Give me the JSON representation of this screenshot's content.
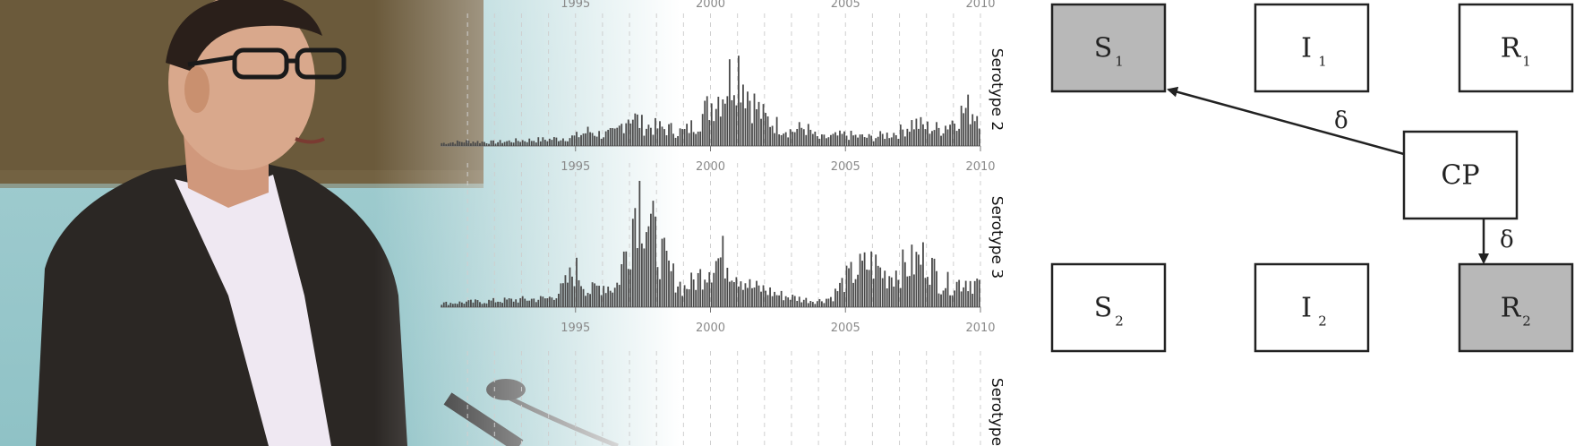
{
  "charts": {
    "tick_labels": [
      "1995",
      "2000",
      "2005",
      "2010"
    ],
    "panels": [
      {
        "label": "Serotype 2"
      },
      {
        "label": "Serotype 3"
      },
      {
        "label": "Serotype"
      }
    ]
  },
  "chart_data": [
    {
      "type": "bar",
      "title": "",
      "series_name": "Serotype 2",
      "xlim": [
        1990,
        2010
      ],
      "x_ticks": [
        1995,
        2000,
        2005,
        2010
      ],
      "profile": [
        [
          1990.0,
          0.03
        ],
        [
          1991.0,
          0.05
        ],
        [
          1992.0,
          0.04
        ],
        [
          1993.0,
          0.06
        ],
        [
          1994.0,
          0.07
        ],
        [
          1995.0,
          0.1
        ],
        [
          1995.5,
          0.16
        ],
        [
          1996.0,
          0.12
        ],
        [
          1996.5,
          0.14
        ],
        [
          1997.0,
          0.35
        ],
        [
          1997.5,
          0.22
        ],
        [
          1998.0,
          0.2
        ],
        [
          1998.5,
          0.18
        ],
        [
          1999.0,
          0.15
        ],
        [
          1999.5,
          0.25
        ],
        [
          2000.0,
          0.45
        ],
        [
          2000.5,
          0.6
        ],
        [
          2001.0,
          0.9
        ],
        [
          2001.5,
          0.5
        ],
        [
          2002.0,
          0.3
        ],
        [
          2002.5,
          0.22
        ],
        [
          2003.0,
          0.16
        ],
        [
          2003.5,
          0.2
        ],
        [
          2004.0,
          0.08
        ],
        [
          2004.5,
          0.1
        ],
        [
          2005.0,
          0.12
        ],
        [
          2005.5,
          0.1
        ],
        [
          2006.0,
          0.09
        ],
        [
          2006.5,
          0.12
        ],
        [
          2007.0,
          0.15
        ],
        [
          2007.5,
          0.25
        ],
        [
          2008.0,
          0.2
        ],
        [
          2008.5,
          0.18
        ],
        [
          2009.0,
          0.28
        ],
        [
          2009.5,
          0.4
        ],
        [
          2010.0,
          0.35
        ]
      ]
    },
    {
      "type": "bar",
      "title": "",
      "series_name": "Serotype 3",
      "xlim": [
        1990,
        2010
      ],
      "x_ticks": [
        1995,
        2000,
        2005,
        2010
      ],
      "profile": [
        [
          1990.0,
          0.03
        ],
        [
          1991.0,
          0.04
        ],
        [
          1992.0,
          0.05
        ],
        [
          1993.0,
          0.06
        ],
        [
          1994.0,
          0.07
        ],
        [
          1994.5,
          0.14
        ],
        [
          1995.0,
          0.3
        ],
        [
          1995.5,
          0.12
        ],
        [
          1996.0,
          0.18
        ],
        [
          1996.5,
          0.15
        ],
        [
          1997.0,
          0.55
        ],
        [
          1997.3,
          0.95
        ],
        [
          1997.7,
          0.7
        ],
        [
          1998.0,
          0.5
        ],
        [
          1998.5,
          0.28
        ],
        [
          1999.0,
          0.15
        ],
        [
          1999.5,
          0.22
        ],
        [
          2000.0,
          0.35
        ],
        [
          2000.5,
          0.4
        ],
        [
          2001.0,
          0.28
        ],
        [
          2001.5,
          0.16
        ],
        [
          2002.0,
          0.14
        ],
        [
          2002.5,
          0.1
        ],
        [
          2003.0,
          0.08
        ],
        [
          2003.5,
          0.06
        ],
        [
          2004.0,
          0.05
        ],
        [
          2004.5,
          0.08
        ],
        [
          2005.0,
          0.22
        ],
        [
          2005.5,
          0.3
        ],
        [
          2006.0,
          0.35
        ],
        [
          2006.5,
          0.25
        ],
        [
          2007.0,
          0.3
        ],
        [
          2007.5,
          0.35
        ],
        [
          2008.0,
          0.4
        ],
        [
          2008.5,
          0.2
        ],
        [
          2009.0,
          0.18
        ],
        [
          2009.5,
          0.22
        ],
        [
          2010.0,
          0.18
        ]
      ]
    },
    {
      "type": "bar",
      "title": "",
      "series_name": "Serotype",
      "xlim": [
        1990,
        2010
      ],
      "x_ticks": [
        1995,
        2000,
        2005,
        2010
      ],
      "profile": []
    }
  ],
  "diagram": {
    "nodes": [
      {
        "id": "S1",
        "main": "S",
        "sub": "1",
        "fill": "#b8b8b8"
      },
      {
        "id": "I1",
        "main": "I",
        "sub": "1",
        "fill": "#ffffff"
      },
      {
        "id": "R1",
        "main": "R",
        "sub": "1",
        "fill": "#ffffff"
      },
      {
        "id": "CP",
        "main": "CP",
        "sub": "",
        "fill": "#ffffff"
      },
      {
        "id": "S2",
        "main": "S",
        "sub": "2",
        "fill": "#ffffff"
      },
      {
        "id": "I2",
        "main": "I",
        "sub": "2",
        "fill": "#ffffff"
      },
      {
        "id": "R2",
        "main": "R",
        "sub": "2",
        "fill": "#b8b8b8"
      }
    ],
    "edges": [
      {
        "from": "CP",
        "to": "S1",
        "label": "δ"
      },
      {
        "from": "CP",
        "to": "R2",
        "label": "δ"
      }
    ]
  },
  "colors": {
    "bar": "#4a4a4a",
    "grid": "#cfcfcf",
    "box_border": "#222222",
    "shaded_box": "#b8b8b8",
    "photo_bg": "#9dc9cc",
    "photo_screen": "#6b5a3b",
    "jacket": "#2b2724",
    "shirt": "#efe8f2",
    "skin": "#d9a88c"
  }
}
